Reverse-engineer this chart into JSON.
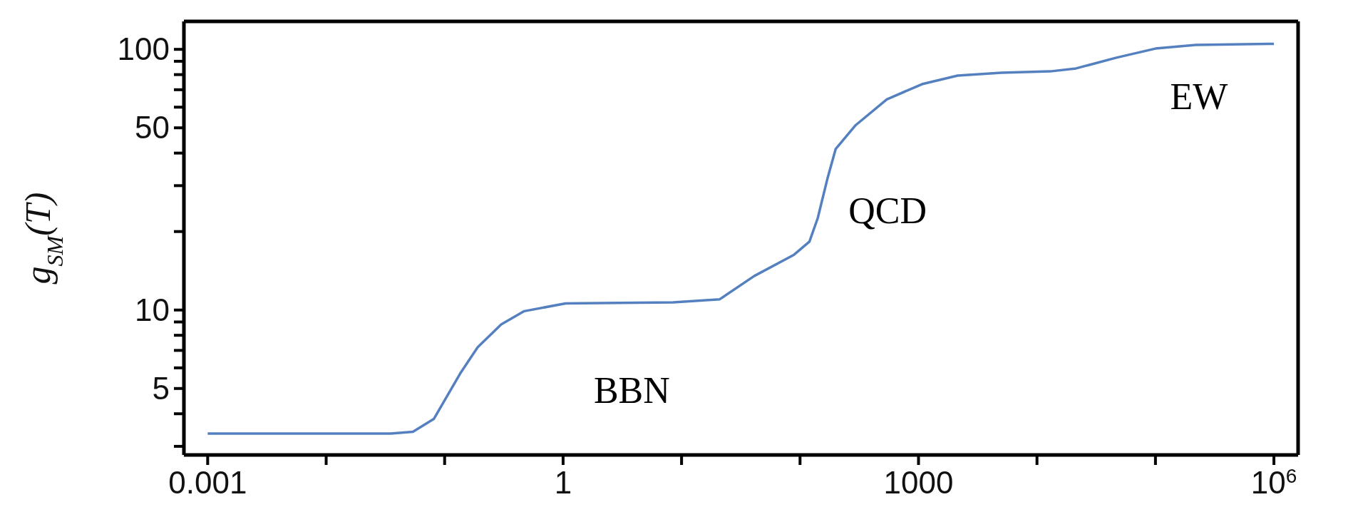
{
  "chart_data": {
    "type": "line",
    "ylabel": "g$_{SM}$(T)",
    "log": "xy",
    "color": "#5580bf",
    "x": [
      0.001,
      0.035,
      0.054,
      0.081,
      0.135,
      0.19,
      0.3,
      0.47,
      1.05,
      8.5,
      21,
      41,
      89,
      120,
      141,
      170,
      200,
      295,
      540,
      1070,
      2140,
      5000,
      12900,
      21400,
      46800,
      100000,
      219000,
      1000000
    ],
    "values": [
      3.36,
      3.36,
      3.41,
      3.82,
      5.7,
      7.2,
      8.8,
      9.9,
      10.6,
      10.7,
      11.0,
      13.5,
      16.3,
      18.3,
      22.5,
      31.8,
      41.5,
      51.2,
      64.3,
      73.5,
      79.3,
      81.3,
      82.3,
      84.5,
      92.9,
      100.7,
      104,
      105
    ],
    "xlim": [
      0.00063,
      1600000
    ],
    "ylim": [
      2.78,
      128
    ],
    "xticks": [
      0.001,
      {
        "value": 0.01,
        "label": null
      },
      {
        "value": 0.1,
        "label": null
      },
      1,
      {
        "value": 10,
        "label": null
      },
      {
        "value": 100,
        "label": null
      },
      1000,
      {
        "value": 10000,
        "label": null
      },
      {
        "value": 100000,
        "label": null
      },
      {
        "value": 1000000,
        "label": "10$^{6}$"
      }
    ],
    "yticks": [
      {
        "value": 3,
        "label": null
      },
      {
        "value": 4,
        "label": null
      },
      5,
      {
        "value": 6,
        "label": null
      },
      {
        "value": 7,
        "label": null
      },
      {
        "value": 8,
        "label": null
      },
      {
        "value": 9,
        "label": null
      },
      10,
      {
        "value": 20,
        "label": null
      },
      {
        "value": 30,
        "label": null
      },
      {
        "value": 40,
        "label": null
      },
      50,
      {
        "value": 60,
        "label": null
      },
      {
        "value": 70,
        "label": null
      },
      {
        "value": 80,
        "label": null
      },
      {
        "value": 90,
        "label": null
      },
      100
    ],
    "annotations": [
      "BBN",
      "QCD",
      "EW"
    ]
  }
}
